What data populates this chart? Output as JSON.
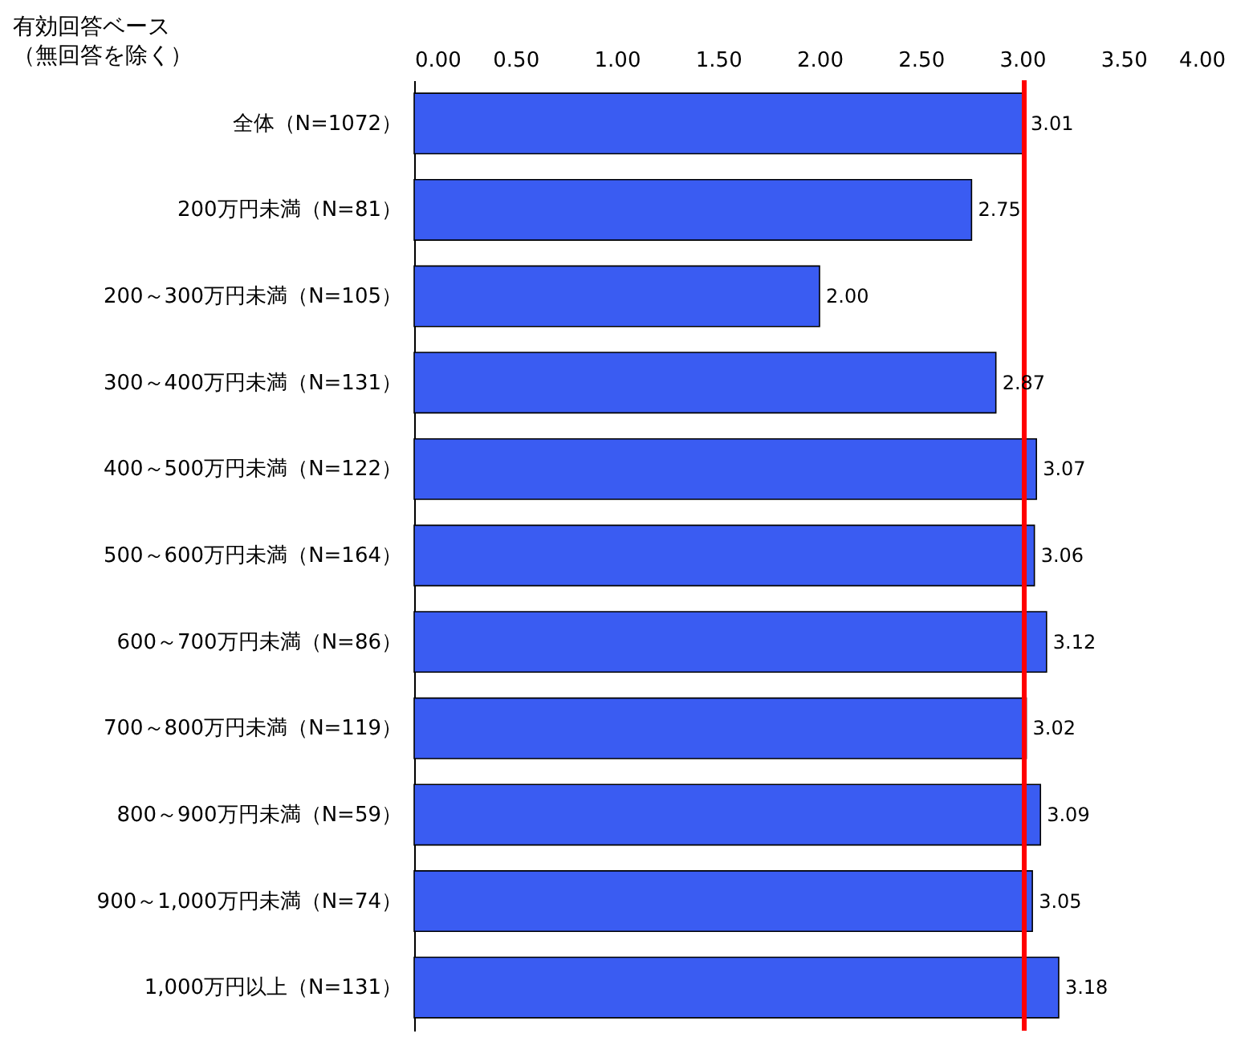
{
  "chart_data": {
    "type": "bar",
    "orientation": "horizontal",
    "annotations": [
      "有効回答ベース",
      "（無回答を除く）"
    ],
    "categories": [
      "全体（N=1072）",
      "200万円未満（N=81）",
      "200～300万円未満（N=105）",
      "300～400万円未満（N=131）",
      "400～500万円未満（N=122）",
      "500～600万円未満（N=164）",
      "600～700万円未満（N=86）",
      "700～800万円未満（N=119）",
      "800～900万円未満（N=59）",
      "900～1,000万円未満（N=74）",
      "1,000万円以上（N=131）"
    ],
    "values": [
      3.01,
      2.75,
      2.0,
      2.87,
      3.07,
      3.06,
      3.12,
      3.02,
      3.09,
      3.05,
      3.18
    ],
    "value_labels": [
      "3.01",
      "2.75",
      "2.00",
      "2.87",
      "3.07",
      "3.06",
      "3.12",
      "3.02",
      "3.09",
      "3.05",
      "3.18"
    ],
    "color": "#3a5cf2",
    "xlim": [
      0,
      4
    ],
    "xticks": [
      {
        "value": 0,
        "label": "0.00"
      },
      {
        "value": 0.5,
        "label": "0.50"
      },
      {
        "value": 1,
        "label": "1.00"
      },
      {
        "value": 1.5,
        "label": "1.50"
      },
      {
        "value": 2,
        "label": "2.00"
      },
      {
        "value": 2.5,
        "label": "2.50"
      },
      {
        "value": 3,
        "label": "3.00"
      },
      {
        "value": 3.5,
        "label": "3.50"
      },
      {
        "value": 4,
        "label": "4.00"
      }
    ],
    "ref_lines": [
      {
        "axis": "x",
        "value": 3.01,
        "color": "#ff0000"
      }
    ],
    "grid": false
  }
}
